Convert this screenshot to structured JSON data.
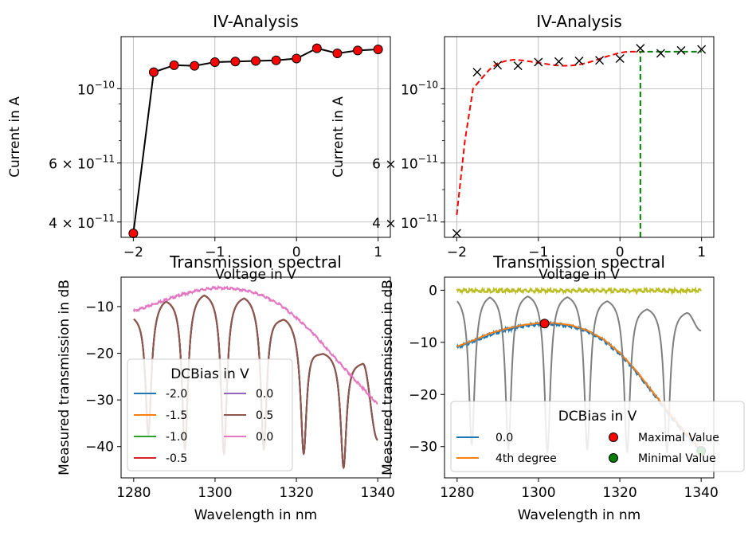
{
  "chart_data": [
    {
      "type": "line",
      "title": "IV-Analysis",
      "xlabel": "Voltage in V",
      "ylabel": "Current in A",
      "xlim": [
        -2.15,
        1.15
      ],
      "ylim": [
        3.6e-11,
        1.43e-10
      ],
      "yscale": "log",
      "grid": true,
      "xticks": [
        {
          "v": -2,
          "label": "−2"
        },
        {
          "v": -1,
          "label": "−1"
        },
        {
          "v": 0,
          "label": "0"
        },
        {
          "v": 1,
          "label": "1"
        }
      ],
      "yticks": [
        {
          "v": 4e-11,
          "base": "4 × 10",
          "exp": "−11"
        },
        {
          "v": 6e-11,
          "base": "6 × 10",
          "exp": "−11"
        },
        {
          "v": 1e-10,
          "base": "10",
          "exp": "−10"
        }
      ],
      "series": [
        {
          "color": "#000000",
          "marker_face": "#ff0000",
          "x": [
            -2,
            -1.75,
            -1.5,
            -1.25,
            -1,
            -0.75,
            -0.5,
            -0.25,
            0,
            0.25,
            0.5,
            0.75,
            1
          ],
          "y": [
            3.7e-11,
            1.12e-10,
            1.175e-10,
            1.17e-10,
            1.2e-10,
            1.205e-10,
            1.21e-10,
            1.215e-10,
            1.23e-10,
            1.32e-10,
            1.275e-10,
            1.3e-10,
            1.31e-10
          ]
        }
      ]
    },
    {
      "type": "line",
      "title": "IV-Analysis",
      "xlabel": "Voltage in V",
      "ylabel": "Current in A",
      "xlim": [
        -2.15,
        1.15
      ],
      "ylim": [
        3.6e-11,
        1.43e-10
      ],
      "yscale": "log",
      "grid": true,
      "xticks": [
        {
          "v": -2,
          "label": "−2"
        },
        {
          "v": -1,
          "label": "−1"
        },
        {
          "v": 0,
          "label": "0"
        },
        {
          "v": 1,
          "label": "1"
        }
      ],
      "yticks": [
        {
          "v": 4e-11,
          "base": "4 × 10",
          "exp": "−11"
        },
        {
          "v": 6e-11,
          "base": "6 × 10",
          "exp": "−11"
        },
        {
          "v": 1e-10,
          "base": "10",
          "exp": "−10"
        }
      ],
      "measured": {
        "marker": "x",
        "color": "#000000",
        "x": [
          -2,
          -1.75,
          -1.5,
          -1.25,
          -1,
          -0.75,
          -0.5,
          -0.25,
          0,
          0.25,
          0.5,
          0.75,
          1
        ],
        "y": [
          3.7e-11,
          1.12e-10,
          1.175e-10,
          1.17e-10,
          1.2e-10,
          1.205e-10,
          1.21e-10,
          1.215e-10,
          1.23e-10,
          1.32e-10,
          1.275e-10,
          1.3e-10,
          1.31e-10
        ]
      },
      "fit": {
        "color": "#ff0000",
        "x": [
          -2,
          -1.9,
          -1.8,
          -1.7,
          -1.6,
          -1.5,
          -1.4,
          -1.3,
          -1.2,
          -1.1,
          -1.0,
          -0.9,
          -0.8,
          -0.7,
          -0.6,
          -0.5,
          -0.4,
          -0.3,
          -0.2,
          -0.1,
          0.0,
          0.1,
          0.2,
          0.25
        ],
        "y": [
          4.2e-11,
          7e-11,
          1e-10,
          1.07e-10,
          1.14e-10,
          1.19e-10,
          1.21e-10,
          1.22e-10,
          1.215e-10,
          1.205e-10,
          1.195e-10,
          1.185e-10,
          1.175e-10,
          1.17e-10,
          1.172e-10,
          1.18e-10,
          1.195e-10,
          1.215e-10,
          1.24e-10,
          1.26e-10,
          1.28e-10,
          1.29e-10,
          1.29e-10,
          1.29e-10
        ]
      },
      "step": {
        "color": "#008000",
        "x": [
          0.25,
          0.25,
          1.0
        ],
        "y": [
          3.6e-11,
          1.29e-10,
          1.29e-10
        ]
      }
    },
    {
      "type": "line",
      "title": "Transmission spectral",
      "xlabel": "Wavelength in nm",
      "ylabel": "Measured transmission in dB",
      "xlim": [
        1276.9,
        1343.1
      ],
      "ylim": [
        -46.7,
        -3.7
      ],
      "grid": false,
      "xticks": [
        {
          "v": 1280,
          "label": "1280"
        },
        {
          "v": 1300,
          "label": "1300"
        },
        {
          "v": 1320,
          "label": "1320"
        },
        {
          "v": 1340,
          "label": "1340"
        }
      ],
      "yticks": [
        {
          "v": -10,
          "label": "−10"
        },
        {
          "v": -20,
          "label": "−20"
        },
        {
          "v": -30,
          "label": "−30"
        },
        {
          "v": -40,
          "label": "−40"
        }
      ],
      "legend_title": "DCBias in V",
      "legend_position": "lower-left",
      "series": [
        {
          "name": "-2.0",
          "color": "#1f77b4",
          "kind": "ring"
        },
        {
          "name": "-1.5",
          "color": "#ff7f0e",
          "kind": "ring"
        },
        {
          "name": "-1.0",
          "color": "#2ca02c",
          "kind": "ring"
        },
        {
          "name": "-0.5",
          "color": "#d62728",
          "kind": "ring"
        },
        {
          "name": "0.0",
          "color": "#9467bd",
          "kind": "ring"
        },
        {
          "name": "0.5",
          "color": "#8c564b",
          "kind": "ring"
        },
        {
          "name": "0.0",
          "color": "#e377c2",
          "kind": "envelope"
        }
      ],
      "ring_model": {
        "dip_centers": [
          1283.6,
          1292.6,
          1302.2,
          1312.0,
          1321.8,
          1331.6
        ],
        "dip_depths": [
          -37.5,
          -40.5,
          -41.5,
          -40.5,
          -41.5,
          -44.5
        ],
        "peaks": [
          [
            1280.0,
            -11.2
          ],
          [
            1287.9,
            -7.8
          ],
          [
            1297.4,
            -6.5
          ],
          [
            1307.1,
            -7.2
          ],
          [
            1317.0,
            -11.9
          ],
          [
            1326.6,
            -19.4
          ],
          [
            1336.3,
            -21.5
          ],
          [
            1340.0,
            -38.5
          ]
        ]
      },
      "envelope": {
        "x": [
          1280,
          1284,
          1288,
          1292,
          1296,
          1300,
          1304,
          1308,
          1312,
          1316,
          1320,
          1324,
          1328,
          1332,
          1336,
          1340
        ],
        "y": [
          -11.0,
          -9.8,
          -8.5,
          -7.4,
          -6.5,
          -6.0,
          -6.1,
          -6.6,
          -7.8,
          -9.6,
          -12.4,
          -15.6,
          -19.6,
          -23.4,
          -27.2,
          -31.0
        ]
      }
    },
    {
      "type": "line",
      "title": "Transmission spectral",
      "xlabel": "Wavelength in nm",
      "ylabel": "Measured transmission in dB",
      "xlim": [
        1276.9,
        1343.1
      ],
      "ylim": [
        -36.0,
        2.5
      ],
      "grid": false,
      "xticks": [
        {
          "v": 1280,
          "label": "1280"
        },
        {
          "v": 1300,
          "label": "1300"
        },
        {
          "v": 1320,
          "label": "1320"
        },
        {
          "v": 1340,
          "label": "1340"
        }
      ],
      "yticks": [
        {
          "v": 0,
          "label": "0"
        },
        {
          "v": -10,
          "label": "−10"
        },
        {
          "v": -20,
          "label": "−20"
        },
        {
          "v": -30,
          "label": "−30"
        }
      ],
      "legend_title": "DCBias in V",
      "legend_position": "lower-right",
      "series": [
        {
          "name": "0.0",
          "color": "#1f77b4",
          "kind": "envelope"
        },
        {
          "name": "4th degree",
          "color": "#ff7f0e",
          "kind": "envelope-fit"
        }
      ],
      "extra_lines": [
        {
          "color": "#bcbd22",
          "kind": "flat",
          "level": 0.0
        },
        {
          "color": "#7f7f7f",
          "kind": "ring"
        }
      ],
      "markers": [
        {
          "name": "Maximal Value",
          "face": "#ff0000",
          "x": 1301.5,
          "y": -6.4
        },
        {
          "name": "Minimal Value",
          "face": "#008000",
          "x": 1340.0,
          "y": -30.8
        }
      ],
      "ring_model": {
        "dip_centers": [
          1283.6,
          1292.6,
          1302.2,
          1312.0,
          1321.8,
          1331.6
        ],
        "dip_depths": [
          -29.5,
          -30.5,
          -31.0,
          -30.5,
          -31.0,
          -31.0
        ],
        "peaks": [
          [
            1280.0,
            -0.5
          ],
          [
            1287.9,
            -0.3
          ],
          [
            1297.4,
            -0.2
          ],
          [
            1307.1,
            -0.4
          ],
          [
            1317.0,
            -1.2
          ],
          [
            1326.6,
            -2.8
          ],
          [
            1336.3,
            -3.5
          ],
          [
            1340.0,
            -7.5
          ]
        ]
      },
      "envelope": {
        "x": [
          1280,
          1284,
          1288,
          1292,
          1296,
          1300,
          1304,
          1308,
          1312,
          1316,
          1320,
          1324,
          1328,
          1332,
          1336,
          1340
        ],
        "y": [
          -11.0,
          -9.8,
          -8.5,
          -7.6,
          -6.9,
          -6.5,
          -6.5,
          -6.9,
          -7.9,
          -9.6,
          -12.2,
          -15.6,
          -19.6,
          -23.6,
          -27.4,
          -30.8
        ]
      }
    }
  ]
}
